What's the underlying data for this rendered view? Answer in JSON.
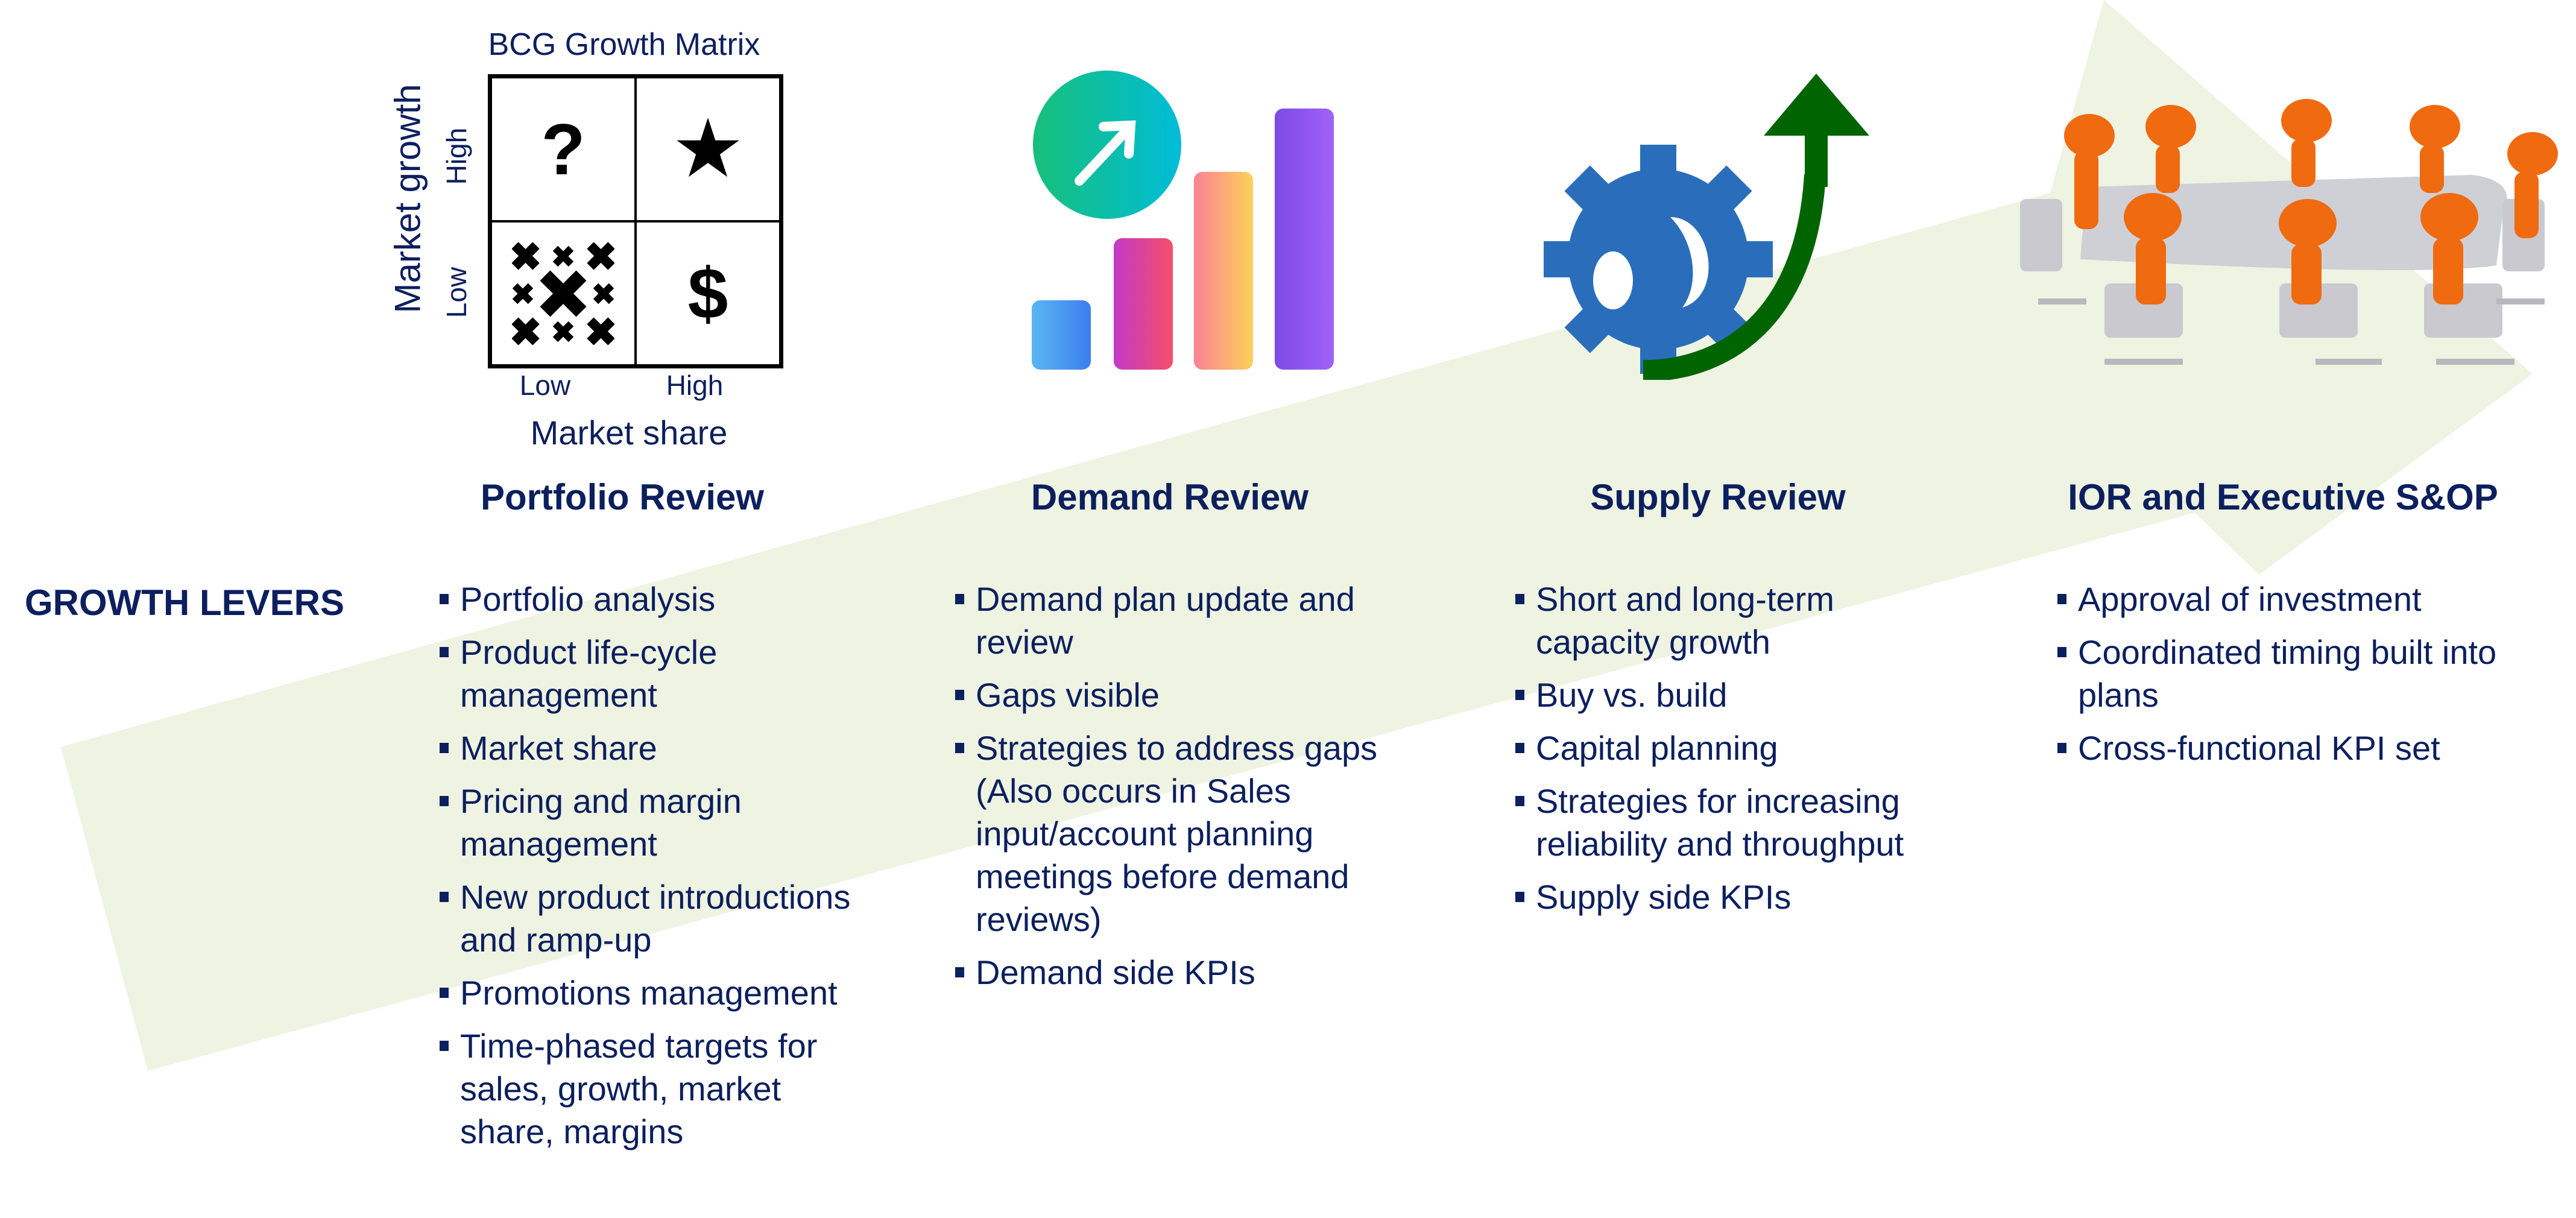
{
  "colors": {
    "text": "#0c1f5e",
    "arrow": "#eef3e2",
    "gear": "#2a6ebb",
    "growth_arrow": "#006400",
    "figure": "#f06a10",
    "table": "#c9c9cf"
  },
  "bcg": {
    "title": "BCG Growth Matrix",
    "y_axis": "Market growth",
    "y_ticks": [
      "High",
      "Low"
    ],
    "x_axis": "Market share",
    "x_ticks": [
      "Low",
      "High"
    ],
    "quadrants": [
      {
        "icon": "question-mark-icon",
        "glyph": "?"
      },
      {
        "icon": "star-icon",
        "glyph": "★"
      },
      {
        "icon": "crosses-icon",
        "glyph": "✖"
      },
      {
        "icon": "dollar-icon",
        "glyph": "$"
      }
    ]
  },
  "row_label": "GROWTH LEVERS",
  "columns": [
    {
      "title": "Portfolio Review",
      "icon": "bcg-matrix-icon",
      "items": [
        [
          "Portfolio analysis"
        ],
        [
          "Product life-cycle",
          "management"
        ],
        [
          "Market share"
        ],
        [
          "Pricing and margin",
          "management"
        ],
        [
          "New product introductions",
          "and ramp-up"
        ],
        [
          "Promotions management"
        ],
        [
          "Time-phased targets for",
          "sales, growth, market",
          "share, margins"
        ]
      ]
    },
    {
      "title": "Demand Review",
      "icon": "growth-bar-chart-icon",
      "items": [
        [
          "Demand plan update and",
          "review"
        ],
        [
          "Gaps visible"
        ],
        [
          "Strategies to address gaps",
          "(Also occurs in Sales",
          "input/account planning",
          "meetings before demand",
          "reviews)"
        ],
        [
          "Demand side KPIs"
        ]
      ]
    },
    {
      "title": "Supply Review",
      "icon": "gear-up-arrow-icon",
      "items": [
        [
          "Short and long-term",
          "capacity growth"
        ],
        [
          "Buy vs. build"
        ],
        [
          "Capital planning"
        ],
        [
          "Strategies for increasing",
          "reliability and throughput"
        ],
        [
          "Supply side KPIs"
        ]
      ]
    },
    {
      "title": "IOR and Executive S&OP",
      "icon": "meeting-table-icon",
      "items": [
        [
          "Approval of investment"
        ],
        [
          "Coordinated timing built into",
          "plans"
        ],
        [
          "Cross-functional KPI set"
        ]
      ]
    }
  ]
}
